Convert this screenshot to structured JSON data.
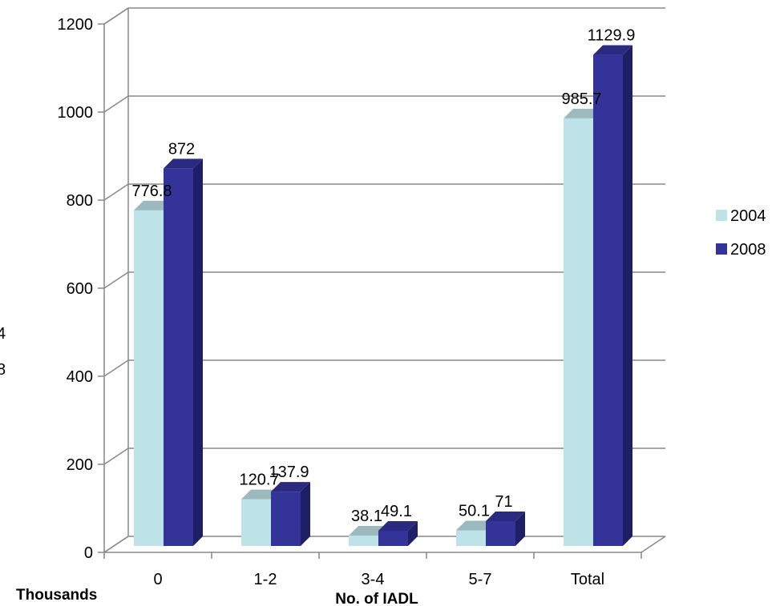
{
  "chart_data": {
    "type": "bar",
    "categories": [
      "0",
      "1-2",
      "3-4",
      "5-7",
      "Total"
    ],
    "series": [
      {
        "name": "2004",
        "values": [
          776.8,
          120.7,
          38.1,
          50.1,
          985.7
        ],
        "color": "#BDE3E8",
        "top_color": "#9CB9BD",
        "side_color": "#8FAEB2"
      },
      {
        "name": "2008",
        "values": [
          872,
          137.9,
          49.1,
          71,
          1129.9
        ],
        "color": "#333399",
        "top_color": "#2A2A80",
        "side_color": "#1F1F66"
      }
    ],
    "data_labels": [
      [
        "776.8",
        "120.7",
        "38.1",
        "50.1",
        "985.7"
      ],
      [
        "872",
        "137.9",
        "49.1",
        "71",
        "1129.9"
      ]
    ],
    "y_ticks": [
      "0",
      "200",
      "400",
      "600",
      "800",
      "1000",
      "1200"
    ],
    "ylim": [
      0,
      1200
    ],
    "xlabel": "No. of IADL",
    "ylabel": "Thousands",
    "grid": true,
    "legend_position": "right",
    "edge_fragments": [
      "4",
      "8"
    ]
  }
}
